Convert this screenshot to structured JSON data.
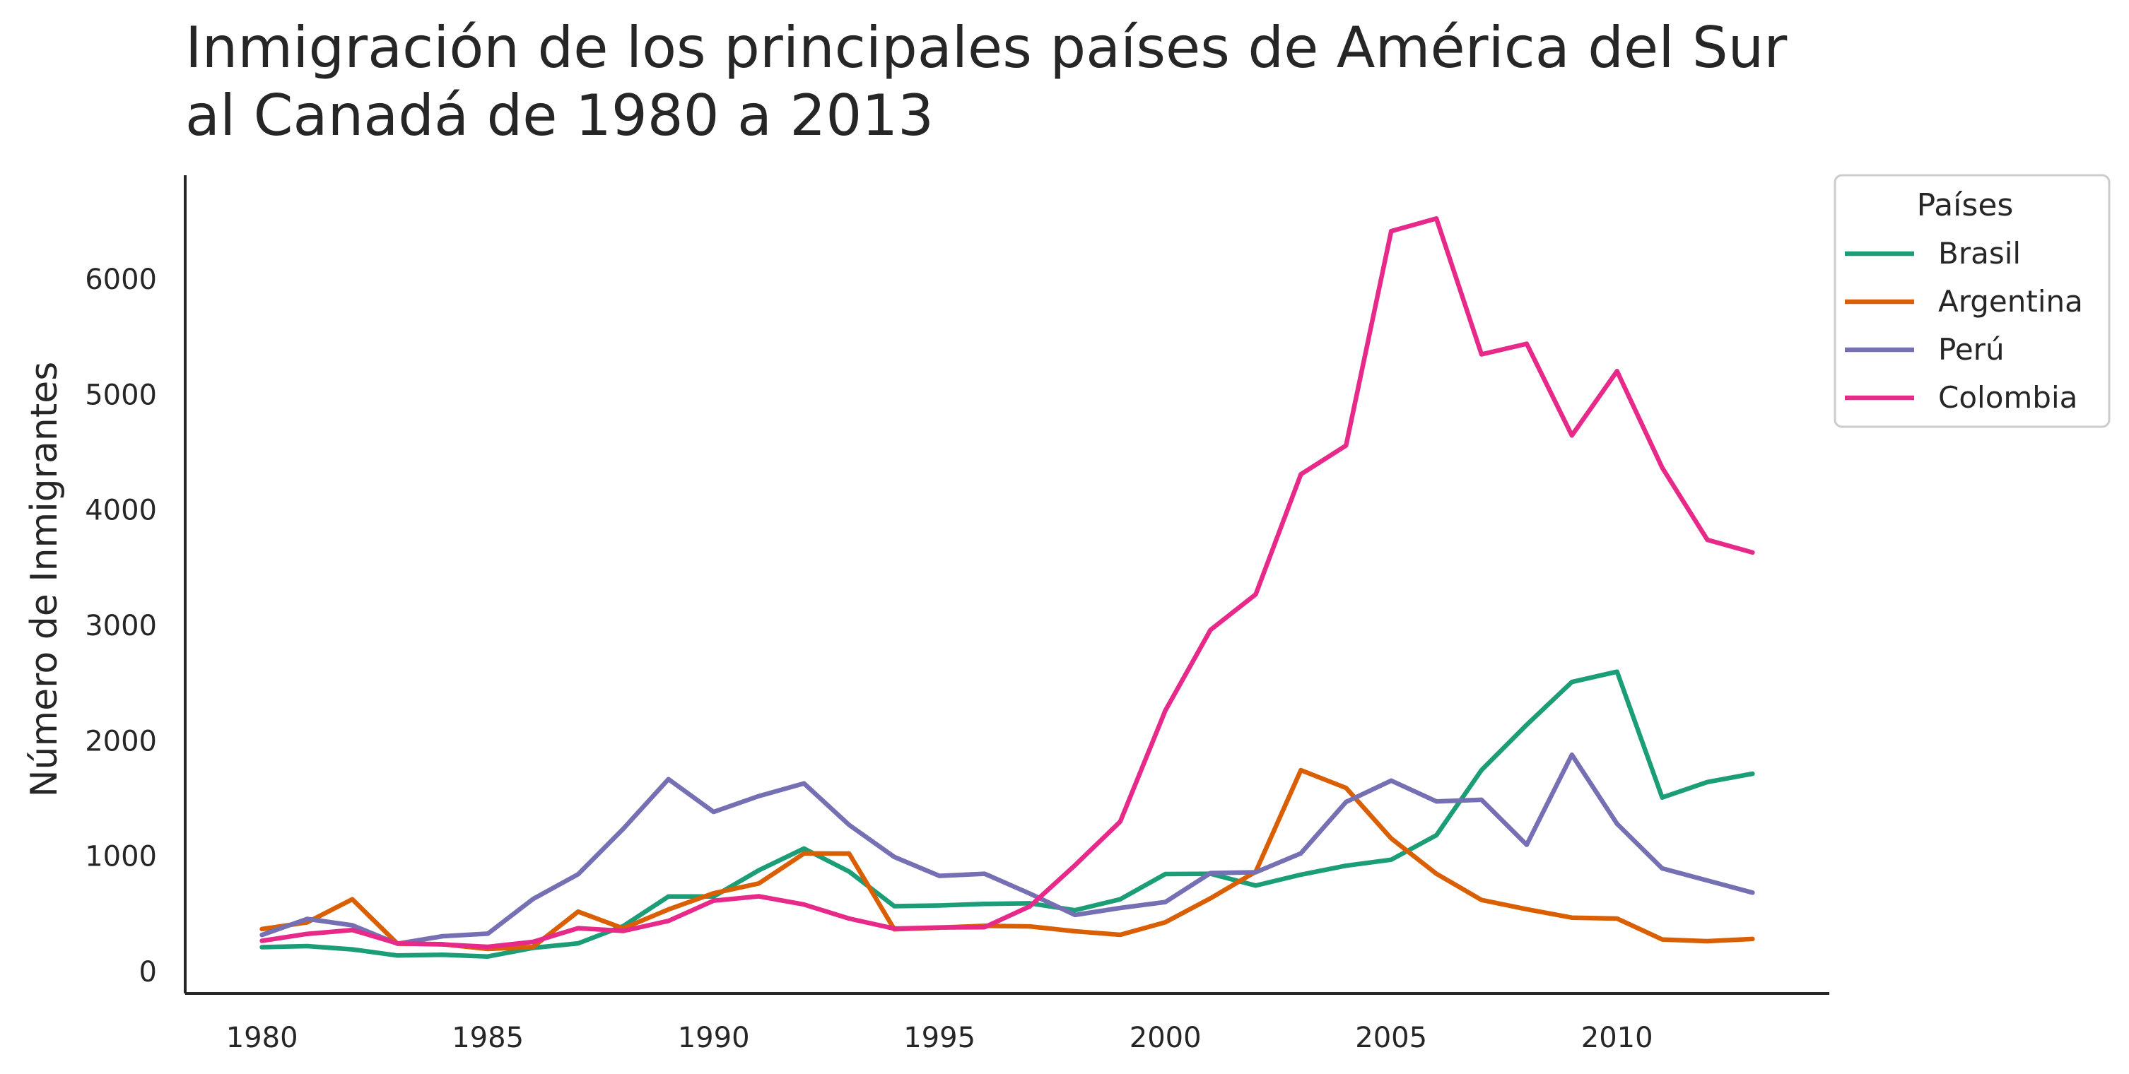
{
  "chart_data": {
    "type": "line",
    "title_lines": [
      "Inmigración de los principales países de América del Sur",
      "al Canadá de 1980 a 2013"
    ],
    "xlabel": "",
    "ylabel": "Número de Inmigrantes",
    "xlim": [
      1978.3,
      2014.7
    ],
    "ylim": [
      -190,
      6900
    ],
    "x_ticks": [
      1980,
      1985,
      1990,
      1995,
      2000,
      2005,
      2010
    ],
    "y_ticks": [
      0,
      1000,
      2000,
      3000,
      4000,
      5000,
      6000
    ],
    "grid": false,
    "legend": {
      "title": "Países",
      "position": "outside top-right"
    },
    "x": [
      1980,
      1981,
      1982,
      1983,
      1984,
      1985,
      1986,
      1987,
      1988,
      1989,
      1990,
      1991,
      1992,
      1993,
      1994,
      1995,
      1996,
      1997,
      1998,
      1999,
      2000,
      2001,
      2002,
      2003,
      2004,
      2005,
      2006,
      2007,
      2008,
      2009,
      2010,
      2011,
      2012,
      2013
    ],
    "series": [
      {
        "name": "Brasil",
        "color": "#1b9e77",
        "values": [
          211,
          220,
          192,
          139,
          145,
          130,
          205,
          244,
          394,
          650,
          650,
          877,
          1066,
          866,
          566,
          572,
          586,
          591,
          531,
          626,
          845,
          847,
          745,
          839,
          917,
          969,
          1181,
          1746,
          2138,
          2509,
          2598,
          1508,
          1642,
          1714
        ]
      },
      {
        "name": "Argentina",
        "color": "#d95f02",
        "values": [
          368,
          426,
          626,
          241,
          237,
          196,
          213,
          519,
          374,
          538,
          678,
          763,
          1023,
          1022,
          366,
          380,
          396,
          391,
          349,
          318,
          427,
          635,
          865,
          1745,
          1591,
          1153,
          847,
          620,
          540,
          467,
          459,
          278,
          263,
          282
        ]
      },
      {
        "name": "Perú",
        "color": "#7570b3",
        "values": [
          317,
          456,
          401,
          241,
          306,
          328,
          628,
          843,
          1237,
          1667,
          1383,
          1520,
          1630,
          1270,
          993,
          829,
          847,
          675,
          490,
          551,
          602,
          853,
          860,
          1024,
          1469,
          1654,
          1474,
          1488,
          1098,
          1878,
          1280,
          894,
          789,
          684
        ]
      },
      {
        "name": "Colombia",
        "color": "#e7298a",
        "values": [
          266,
          326,
          360,
          244,
          235,
          214,
          257,
          376,
          352,
          439,
          614,
          652,
          581,
          459,
          372,
          382,
          384,
          565,
          921,
          1299,
          2262,
          2961,
          3268,
          4308,
          4558,
          6416,
          6525,
          5348,
          5440,
          4645,
          5203,
          4366,
          3741,
          3631
        ]
      }
    ]
  }
}
